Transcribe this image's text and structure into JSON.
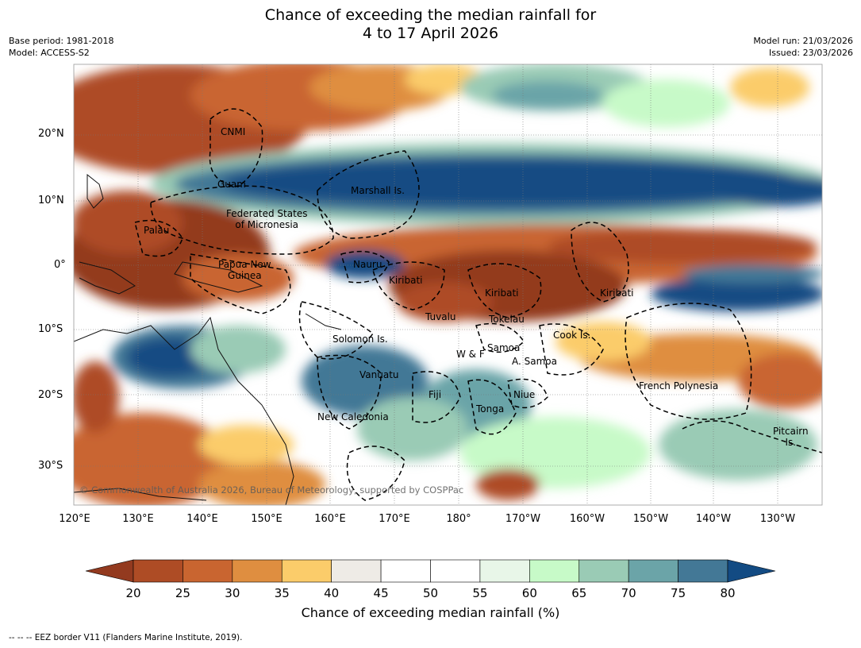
{
  "title": {
    "line1": "Chance of exceeding the median rainfall for",
    "line2": "4 to 17 April 2026"
  },
  "meta": {
    "base_period": "Base period: 1981-2018",
    "model": "Model: ACCESS-S2",
    "model_run": "Model run: 21/03/2026",
    "issued": "Issued: 23/03/2026"
  },
  "map": {
    "lat_labels": [
      "20°N",
      "10°N",
      "0°",
      "10°S",
      "20°S",
      "30°S"
    ],
    "lon_labels": [
      "120°E",
      "130°E",
      "140°E",
      "150°E",
      "160°E",
      "170°E",
      "180°",
      "170°W",
      "160°W",
      "150°W",
      "140°W",
      "130°W"
    ],
    "places": {
      "cnmi": "CNMI",
      "guam": "Guam",
      "marshall": "Marshall Is.",
      "fsm1": "Federated States",
      "fsm2": "of Micronesia",
      "palau": "Palau",
      "png1": "Papua New",
      "png2": "Guinea",
      "nauru": "Nauru",
      "kiribati_w": "Kiribati",
      "kiribati_c": "Kiribati",
      "kiribati_e": "Kiribati",
      "tuvalu": "Tuvalu",
      "tokelau": "Tokelau",
      "cook": "Cook Is.",
      "solomon": "Solomon Is.",
      "wf": "W & F",
      "samoa": "Samoa",
      "asamoa": "A. Samoa",
      "vanuatu": "Vanuatu",
      "fiji": "Fiji",
      "niue": "Niue",
      "tonga": "Tonga",
      "frpoly": "French Polynesia",
      "newcal": "New Caledonia",
      "pitcairn1": "Pitcairn",
      "pitcairn2": "Is."
    },
    "copyright": "© Commonwealth of Australia 2026, Bureau of Meteorology, supported by COSPPac"
  },
  "colorbar": {
    "ticks": [
      "20",
      "25",
      "30",
      "35",
      "40",
      "45",
      "50",
      "55",
      "60",
      "65",
      "70",
      "75",
      "80"
    ],
    "colors": [
      "#933a1f",
      "#ae4c25",
      "#c96530",
      "#df8e40",
      "#fbcc6a",
      "#eeebe6",
      "#ffffff",
      "#ffffff",
      "#e8f6e8",
      "#c7fac8",
      "#9acbb5",
      "#6ba4a8",
      "#437896",
      "#134b83"
    ],
    "label": "Chance of exceeding median rainfall (%)"
  },
  "footnote": "--  --  -- EEZ border V11 (Flanders Marine Institute, 2019)."
}
